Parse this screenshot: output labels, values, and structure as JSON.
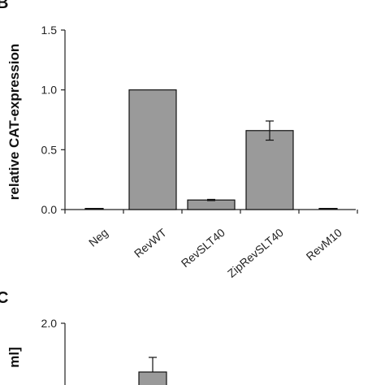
{
  "panels": {
    "b_label": "B",
    "c_label": "C"
  },
  "chart_data": [
    {
      "type": "bar",
      "categories": [
        "Neg",
        "RevWT",
        "RevSLT40",
        "ZipRevSLT40",
        "RevM10"
      ],
      "values": [
        0.0,
        1.0,
        0.08,
        0.66,
        0.0
      ],
      "errors": [
        0,
        0,
        0.005,
        0.08,
        0
      ],
      "ylabel": "relative CAT-expression",
      "yticks": [
        "0.0",
        "0.5",
        "1.0",
        "1.5"
      ],
      "ylim": [
        0,
        1.5
      ],
      "bar_color": "#9a9a9a"
    },
    {
      "type": "bar",
      "ylabel": "ml]",
      "yticks": [
        "2.0"
      ],
      "ylim_top": 2.0,
      "visible_bar": {
        "value": 1.6,
        "error": 0.12
      }
    }
  ]
}
